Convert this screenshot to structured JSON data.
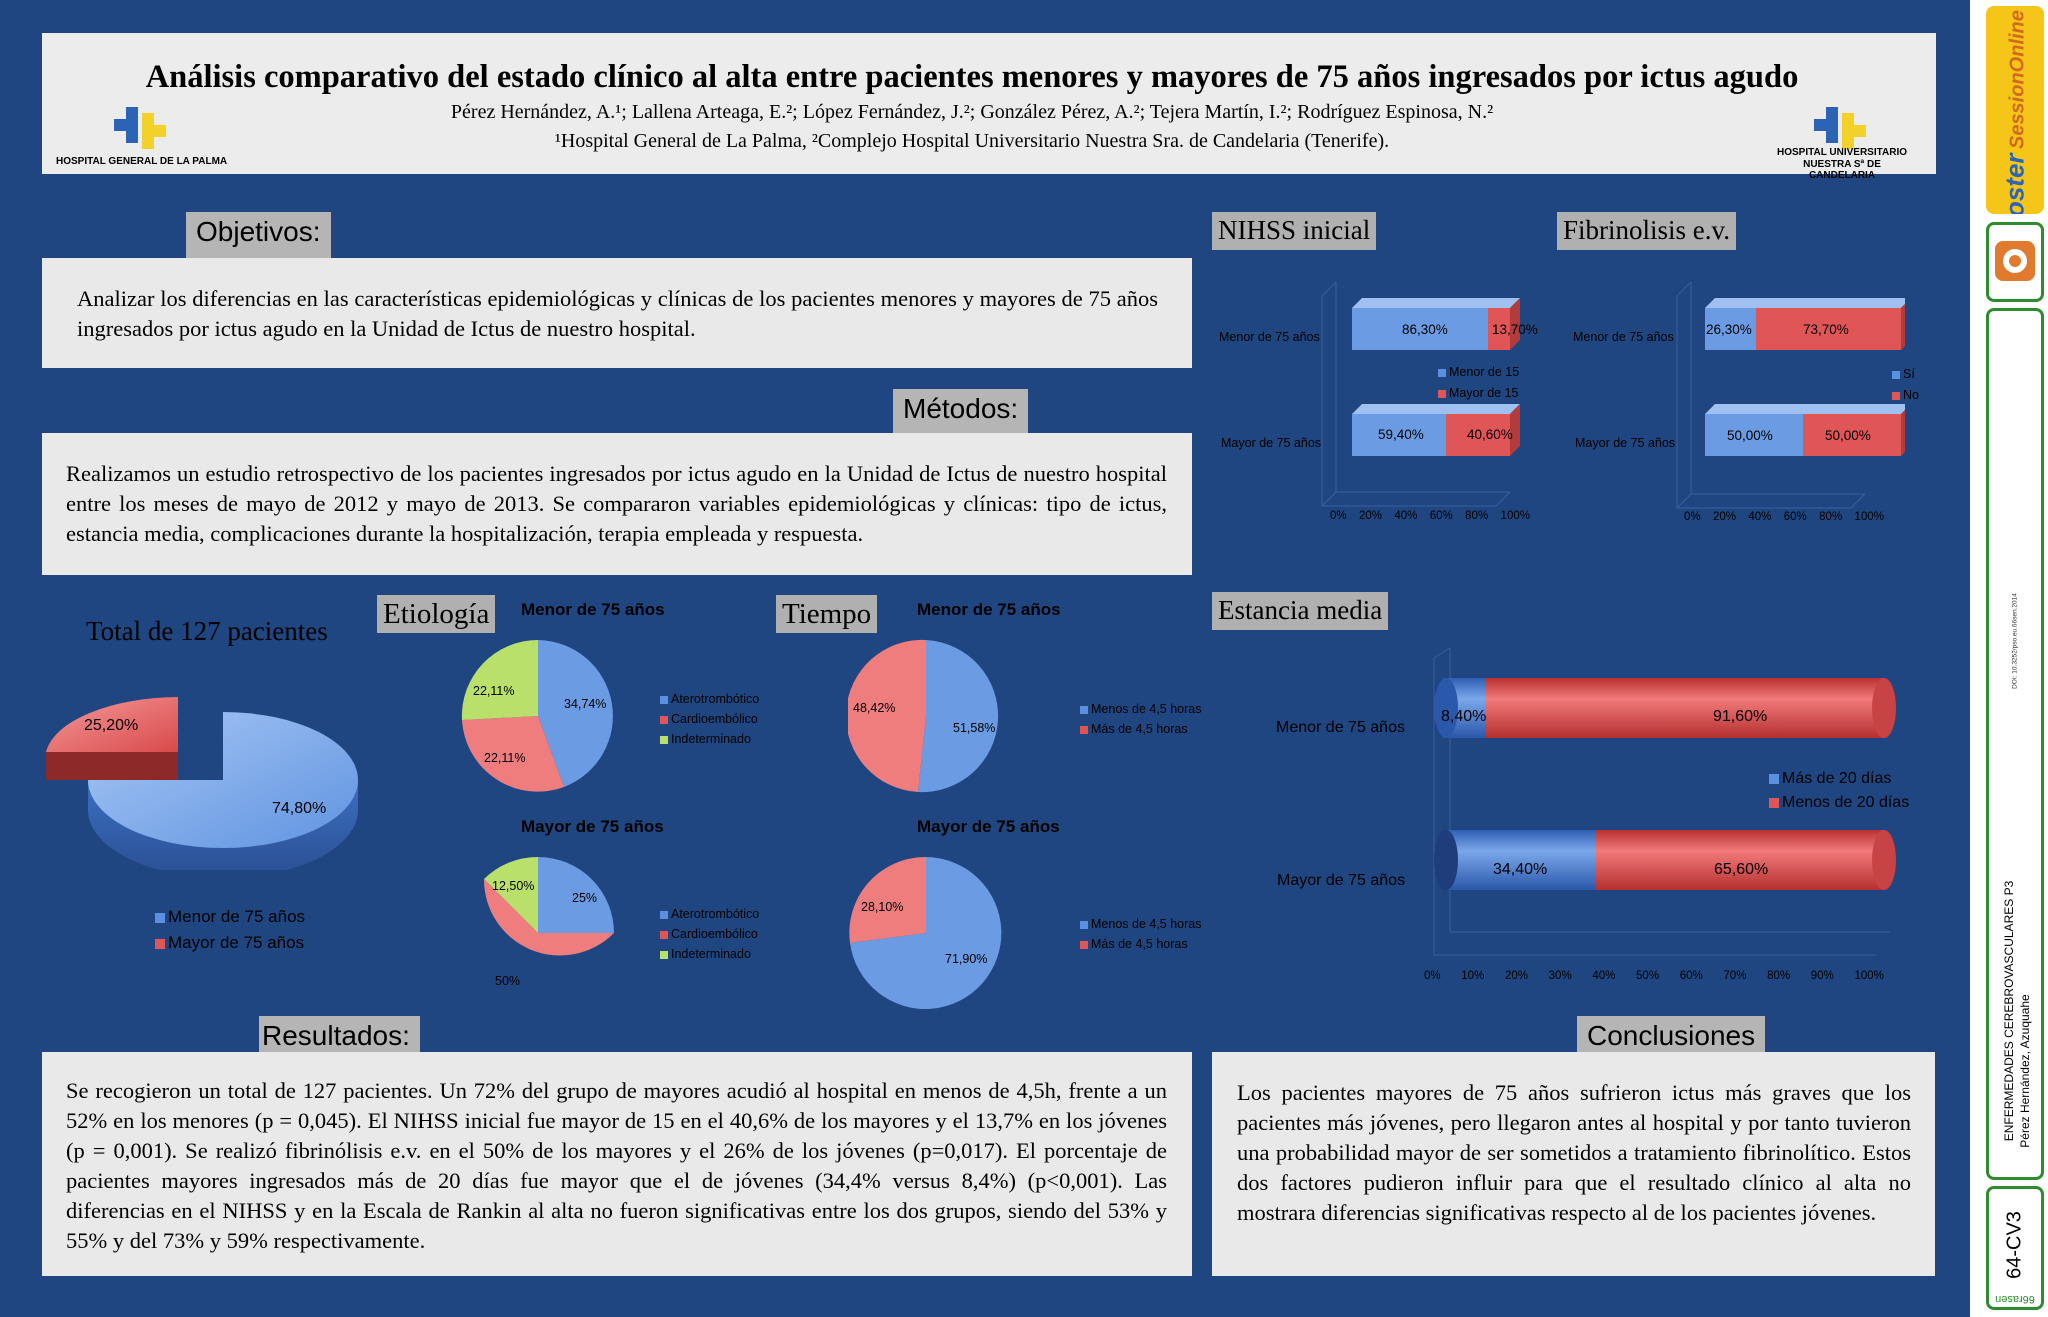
{
  "header": {
    "title": "Análisis comparativo del estado clínico al alta entre pacientes menores y mayores de 75 años ingresados por ictus agudo",
    "authors": "Pérez Hernández, A.¹; Lallena Arteaga, E.²; López Fernández, J.²; González Pérez, A.²; Tejera Martín, I.²; Rodríguez Espinosa, N.²",
    "affiliations": "¹Hospital General de La Palma, ²Complejo Hospital Universitario Nuestra Sra. de Candelaria (Tenerife).",
    "logo_left": "HOSPITAL GENERAL DE LA PALMA",
    "logo_right_1": "HOSPITAL UNIVERSITARIO",
    "logo_right_2": "NUESTRA Sª DE CANDELARIA"
  },
  "objetivos": {
    "label": "Objetivos:",
    "text": "Analizar los diferencias en las características epidemiológicas y clínicas de los pacientes menores y mayores de 75 años ingresados por ictus agudo en la Unidad de Ictus de nuestro hospital."
  },
  "metodos": {
    "label": "Métodos:",
    "text": "Realizamos un estudio retrospectivo de los pacientes ingresados por ictus agudo en la Unidad de Ictus de nuestro hospital entre los meses de mayo de 2012 y mayo de 2013. Se compararon variables epidemiológicas y clínicas: tipo de ictus, estancia media, complicaciones durante la hospitalización, terapia empleada y respuesta."
  },
  "resultados": {
    "label": "Resultados:",
    "text": "Se recogieron un total de 127 pacientes. Un 72% del grupo de mayores acudió al hospital en menos de 4,5h, frente a un 52% en los menores (p = 0,045). El NIHSS inicial fue mayor de 15 en el 40,6% de los mayores y el 13,7% en los jóvenes (p = 0,001). Se realizó fibrinólisis e.v. en el 50% de los mayores y el 26% de los jóvenes (p=0,017). El porcentaje de pacientes mayores ingresados más de 20 días fue mayor que el de jóvenes (34,4% versus 8,4%) (p<0,001). Las diferencias en el NIHSS y en la Escala de Rankin al alta no fueron significativas entre los dos grupos, siendo del 53% y 55% y del 73% y 59% respectivamente."
  },
  "conclusiones": {
    "label": "Conclusiones",
    "text": "Los pacientes mayores de 75 años sufrieron ictus más graves que los pacientes más jóvenes, pero llegaron antes al hospital y por tanto tuvieron una probabilidad mayor de ser sometidos a tratamiento fibrinolítico. Estos dos factores pudieron influir para que el resultado clínico al alta no mostrara diferencias significativas respecto al de los pacientes jóvenes."
  },
  "sidebar": {
    "brand_top": "Poster",
    "brand_bottom": "SessionOnline",
    "year": "2014",
    "doi": "DOI: 10.3252/pso.eu.66sen.2014",
    "category": "ENFERMEDADES CEREBROVASCULARES P3",
    "author": "Pérez Hernández, Azuquahe",
    "code": "64-CV3",
    "footer": "66rasen"
  },
  "colors": {
    "blue": "#5b8fe0",
    "red": "#e05555",
    "green": "#b8e06a",
    "bg": "#1f4680"
  },
  "chart_data": [
    {
      "id": "total",
      "type": "pie",
      "title": "Total de 127 pacientes",
      "categories": [
        "Menor de 75 años",
        "Mayor de 75 años"
      ],
      "values": [
        74.8,
        25.2
      ],
      "labels": [
        "74,80%",
        "25,20%"
      ]
    },
    {
      "id": "etiologia",
      "type": "pie",
      "section": "Etiología",
      "legend": [
        "Aterotrombótico",
        "Cardioembólico",
        "Indeterminado"
      ],
      "charts": [
        {
          "title": "Menor de 75 años",
          "values": [
            34.74,
            22.11,
            22.11
          ],
          "labels": [
            "34,74%",
            "22,11%",
            "22,11%"
          ]
        },
        {
          "title": "Mayor de 75 años",
          "values": [
            25,
            50,
            12.5
          ],
          "labels": [
            "25%",
            "50%",
            "12,50%"
          ]
        }
      ]
    },
    {
      "id": "tiempo",
      "type": "pie",
      "section": "Tiempo",
      "legend": [
        "Menos de 4,5 horas",
        "Más de 4,5 horas"
      ],
      "charts": [
        {
          "title": "Menor de 75 años",
          "values": [
            51.58,
            48.42
          ],
          "labels": [
            "51,58%",
            "48,42%"
          ]
        },
        {
          "title": "Mayor de 75 años",
          "values": [
            71.9,
            28.1
          ],
          "labels": [
            "71,90%",
            "28,10%"
          ]
        }
      ]
    },
    {
      "id": "nihss",
      "type": "bar",
      "title": "NIHSS inicial",
      "categories": [
        "Menor de 75 años",
        "Mayor de 75 años"
      ],
      "series": [
        {
          "name": "Menor de 15",
          "values": [
            86.3,
            59.4
          ],
          "labels": [
            "86,30%",
            "59,40%"
          ]
        },
        {
          "name": "Mayor de 15",
          "values": [
            13.7,
            40.6
          ],
          "labels": [
            "13,70%",
            "40,60%"
          ]
        }
      ],
      "ticks": [
        "0%",
        "20%",
        "40%",
        "60%",
        "80%",
        "100%"
      ]
    },
    {
      "id": "fibrinolisis",
      "type": "bar",
      "title": "Fibrinolisis e.v.",
      "categories": [
        "Menor de 75 años",
        "Mayor de 75 años"
      ],
      "series": [
        {
          "name": "Sí",
          "values": [
            26.3,
            50.0
          ],
          "labels": [
            "26,30%",
            "50,00%"
          ]
        },
        {
          "name": "No",
          "values": [
            73.7,
            50.0
          ],
          "labels": [
            "73,70%",
            "50,00%"
          ]
        }
      ],
      "ticks": [
        "0%",
        "20%",
        "40%",
        "60%",
        "80%",
        "100%"
      ]
    },
    {
      "id": "estancia",
      "type": "bar",
      "title": "Estancia media",
      "categories": [
        "Menor de 75 años",
        "Mayor de 75 años"
      ],
      "series": [
        {
          "name": "Más de 20 días",
          "values": [
            8.4,
            34.4
          ],
          "labels": [
            "8,40%",
            "34,40%"
          ]
        },
        {
          "name": "Menos de 20 días",
          "values": [
            91.6,
            65.6
          ],
          "labels": [
            "91,60%",
            "65,60%"
          ]
        }
      ],
      "ticks": [
        "0%",
        "10%",
        "20%",
        "30%",
        "40%",
        "50%",
        "60%",
        "70%",
        "80%",
        "90%",
        "100%"
      ]
    }
  ]
}
